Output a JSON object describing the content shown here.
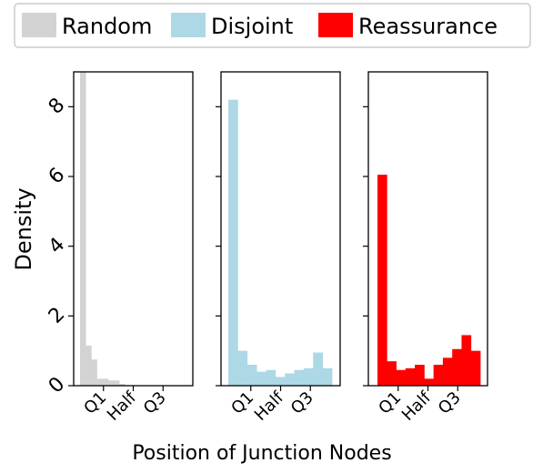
{
  "chart_data": [
    {
      "type": "bar",
      "series": [
        {
          "name": "Random",
          "color": "#d3d3d3",
          "values": [
            9.0,
            1.15,
            0.75,
            0.2,
            0.2,
            0.15,
            0.15,
            0.05,
            0,
            0,
            0,
            0,
            0,
            0,
            0,
            0,
            0,
            0,
            0,
            0
          ]
        }
      ],
      "xticks": [
        "Q1",
        "Half",
        "Q3"
      ],
      "ylabel": "Density",
      "yticks": [
        "0",
        "2",
        "4",
        "6",
        "8"
      ],
      "ylim": [
        0,
        9
      ]
    },
    {
      "type": "bar",
      "series": [
        {
          "name": "Disjoint",
          "color": "#add8e6",
          "values": [
            8.2,
            1.0,
            0.6,
            0.4,
            0.45,
            0.25,
            0.35,
            0.45,
            0.5,
            0.95,
            0.5
          ]
        }
      ],
      "xticks": [
        "Q1",
        "Half",
        "Q3"
      ],
      "ylim": [
        0,
        9
      ]
    },
    {
      "type": "bar",
      "series": [
        {
          "name": "Reassurance",
          "color": "#ff0000",
          "values": [
            6.05,
            0.7,
            0.45,
            0.5,
            0.6,
            0.2,
            0.6,
            0.8,
            1.05,
            1.45,
            1.0
          ]
        }
      ],
      "xticks": [
        "Q1",
        "Half",
        "Q3"
      ],
      "ylim": [
        0,
        9
      ]
    }
  ],
  "legend": [
    {
      "label": "Random",
      "color": "#d3d3d3"
    },
    {
      "label": "Disjoint",
      "color": "#add8e6"
    },
    {
      "label": "Reassurance",
      "color": "#ff0000"
    }
  ],
  "xlabel": "Position of Junction Nodes"
}
